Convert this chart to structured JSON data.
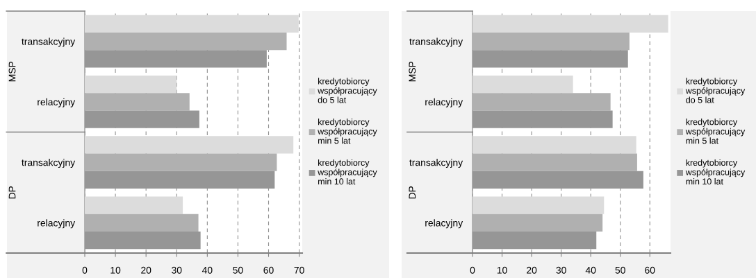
{
  "chart_data": [
    {
      "type": "bar",
      "orientation": "horizontal",
      "categories": [
        "transakcyjny",
        "relacyjny",
        "transakcyjny",
        "relacyjny"
      ],
      "annotations": [
        "MSP",
        "DP"
      ],
      "xlim": [
        0,
        71
      ],
      "xticks": [
        0,
        10,
        20,
        30,
        40,
        50,
        60,
        70
      ],
      "grid": "x",
      "legend": "right",
      "series": [
        {
          "name": "kredytobiorcy\nwspółpracujący\ndo 5 lat",
          "color": "#dcdcdc",
          "values": [
            69.8,
            30.0,
            68.1,
            32.0
          ]
        },
        {
          "name": "kredytobiorcy\nwspółpracujący\nmin 5 lat",
          "color": "#b0b0b0",
          "values": [
            65.9,
            34.2,
            62.7,
            37.1
          ]
        },
        {
          "name": "kredytobiorcy\nwspółpracujący\nmin 10 lat",
          "color": "#969696",
          "values": [
            59.4,
            37.4,
            62.0,
            37.8
          ]
        }
      ]
    },
    {
      "type": "bar",
      "orientation": "horizontal",
      "categories": [
        "transakcyjny",
        "relacyjny",
        "transakcyjny",
        "relacyjny"
      ],
      "annotations": [
        "MSP",
        "DP"
      ],
      "xlim": [
        0,
        67
      ],
      "xticks": [
        0,
        10,
        20,
        30,
        40,
        50,
        60
      ],
      "grid": "x",
      "legend": "right",
      "series": [
        {
          "name": "kredytobiorcy\nwspółpracujący\ndo 5 lat",
          "color": "#dcdcdc",
          "values": [
            66.2,
            34.0,
            55.4,
            44.5
          ]
        },
        {
          "name": "kredytobiorcy\nwspółpracujący\nmin 5 lat",
          "color": "#b0b0b0",
          "values": [
            53.1,
            46.7,
            55.7,
            44.0
          ]
        },
        {
          "name": "kredytobiorcy\nwspółpracujący\nmin 10 lat",
          "color": "#969696",
          "values": [
            52.6,
            47.4,
            57.8,
            41.9
          ]
        }
      ]
    }
  ]
}
